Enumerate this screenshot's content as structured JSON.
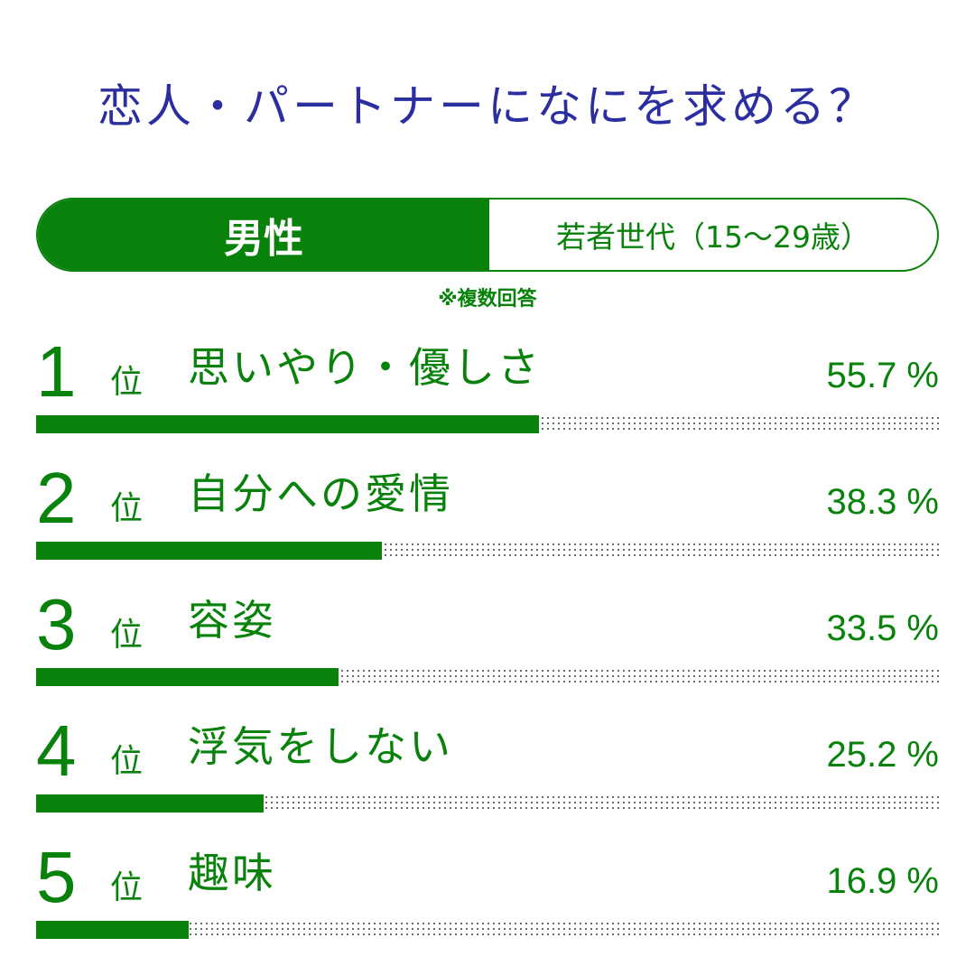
{
  "title": "恋人・パートナーになにを求める？",
  "tabs": {
    "gender": "男性",
    "generation": "若者世代（15～29歳）"
  },
  "note": "※複数回答",
  "colors": {
    "title": "#2b2ea0",
    "accent": "#08820b",
    "track_dots": "#555555"
  },
  "chart_data": {
    "type": "bar",
    "rank_unit": "位",
    "percent_suffix": " %",
    "xlim": [
      0,
      100
    ],
    "items": [
      {
        "rank": "1",
        "label": "思いやり・優しさ",
        "value": 55.7,
        "value_text": "55.7"
      },
      {
        "rank": "2",
        "label": "自分への愛情",
        "value": 38.3,
        "value_text": "38.3"
      },
      {
        "rank": "3",
        "label": "容姿",
        "value": 33.5,
        "value_text": "33.5"
      },
      {
        "rank": "4",
        "label": "浮気をしない",
        "value": 25.2,
        "value_text": "25.2"
      },
      {
        "rank": "5",
        "label": "趣味",
        "value": 16.9,
        "value_text": "16.9"
      }
    ]
  }
}
